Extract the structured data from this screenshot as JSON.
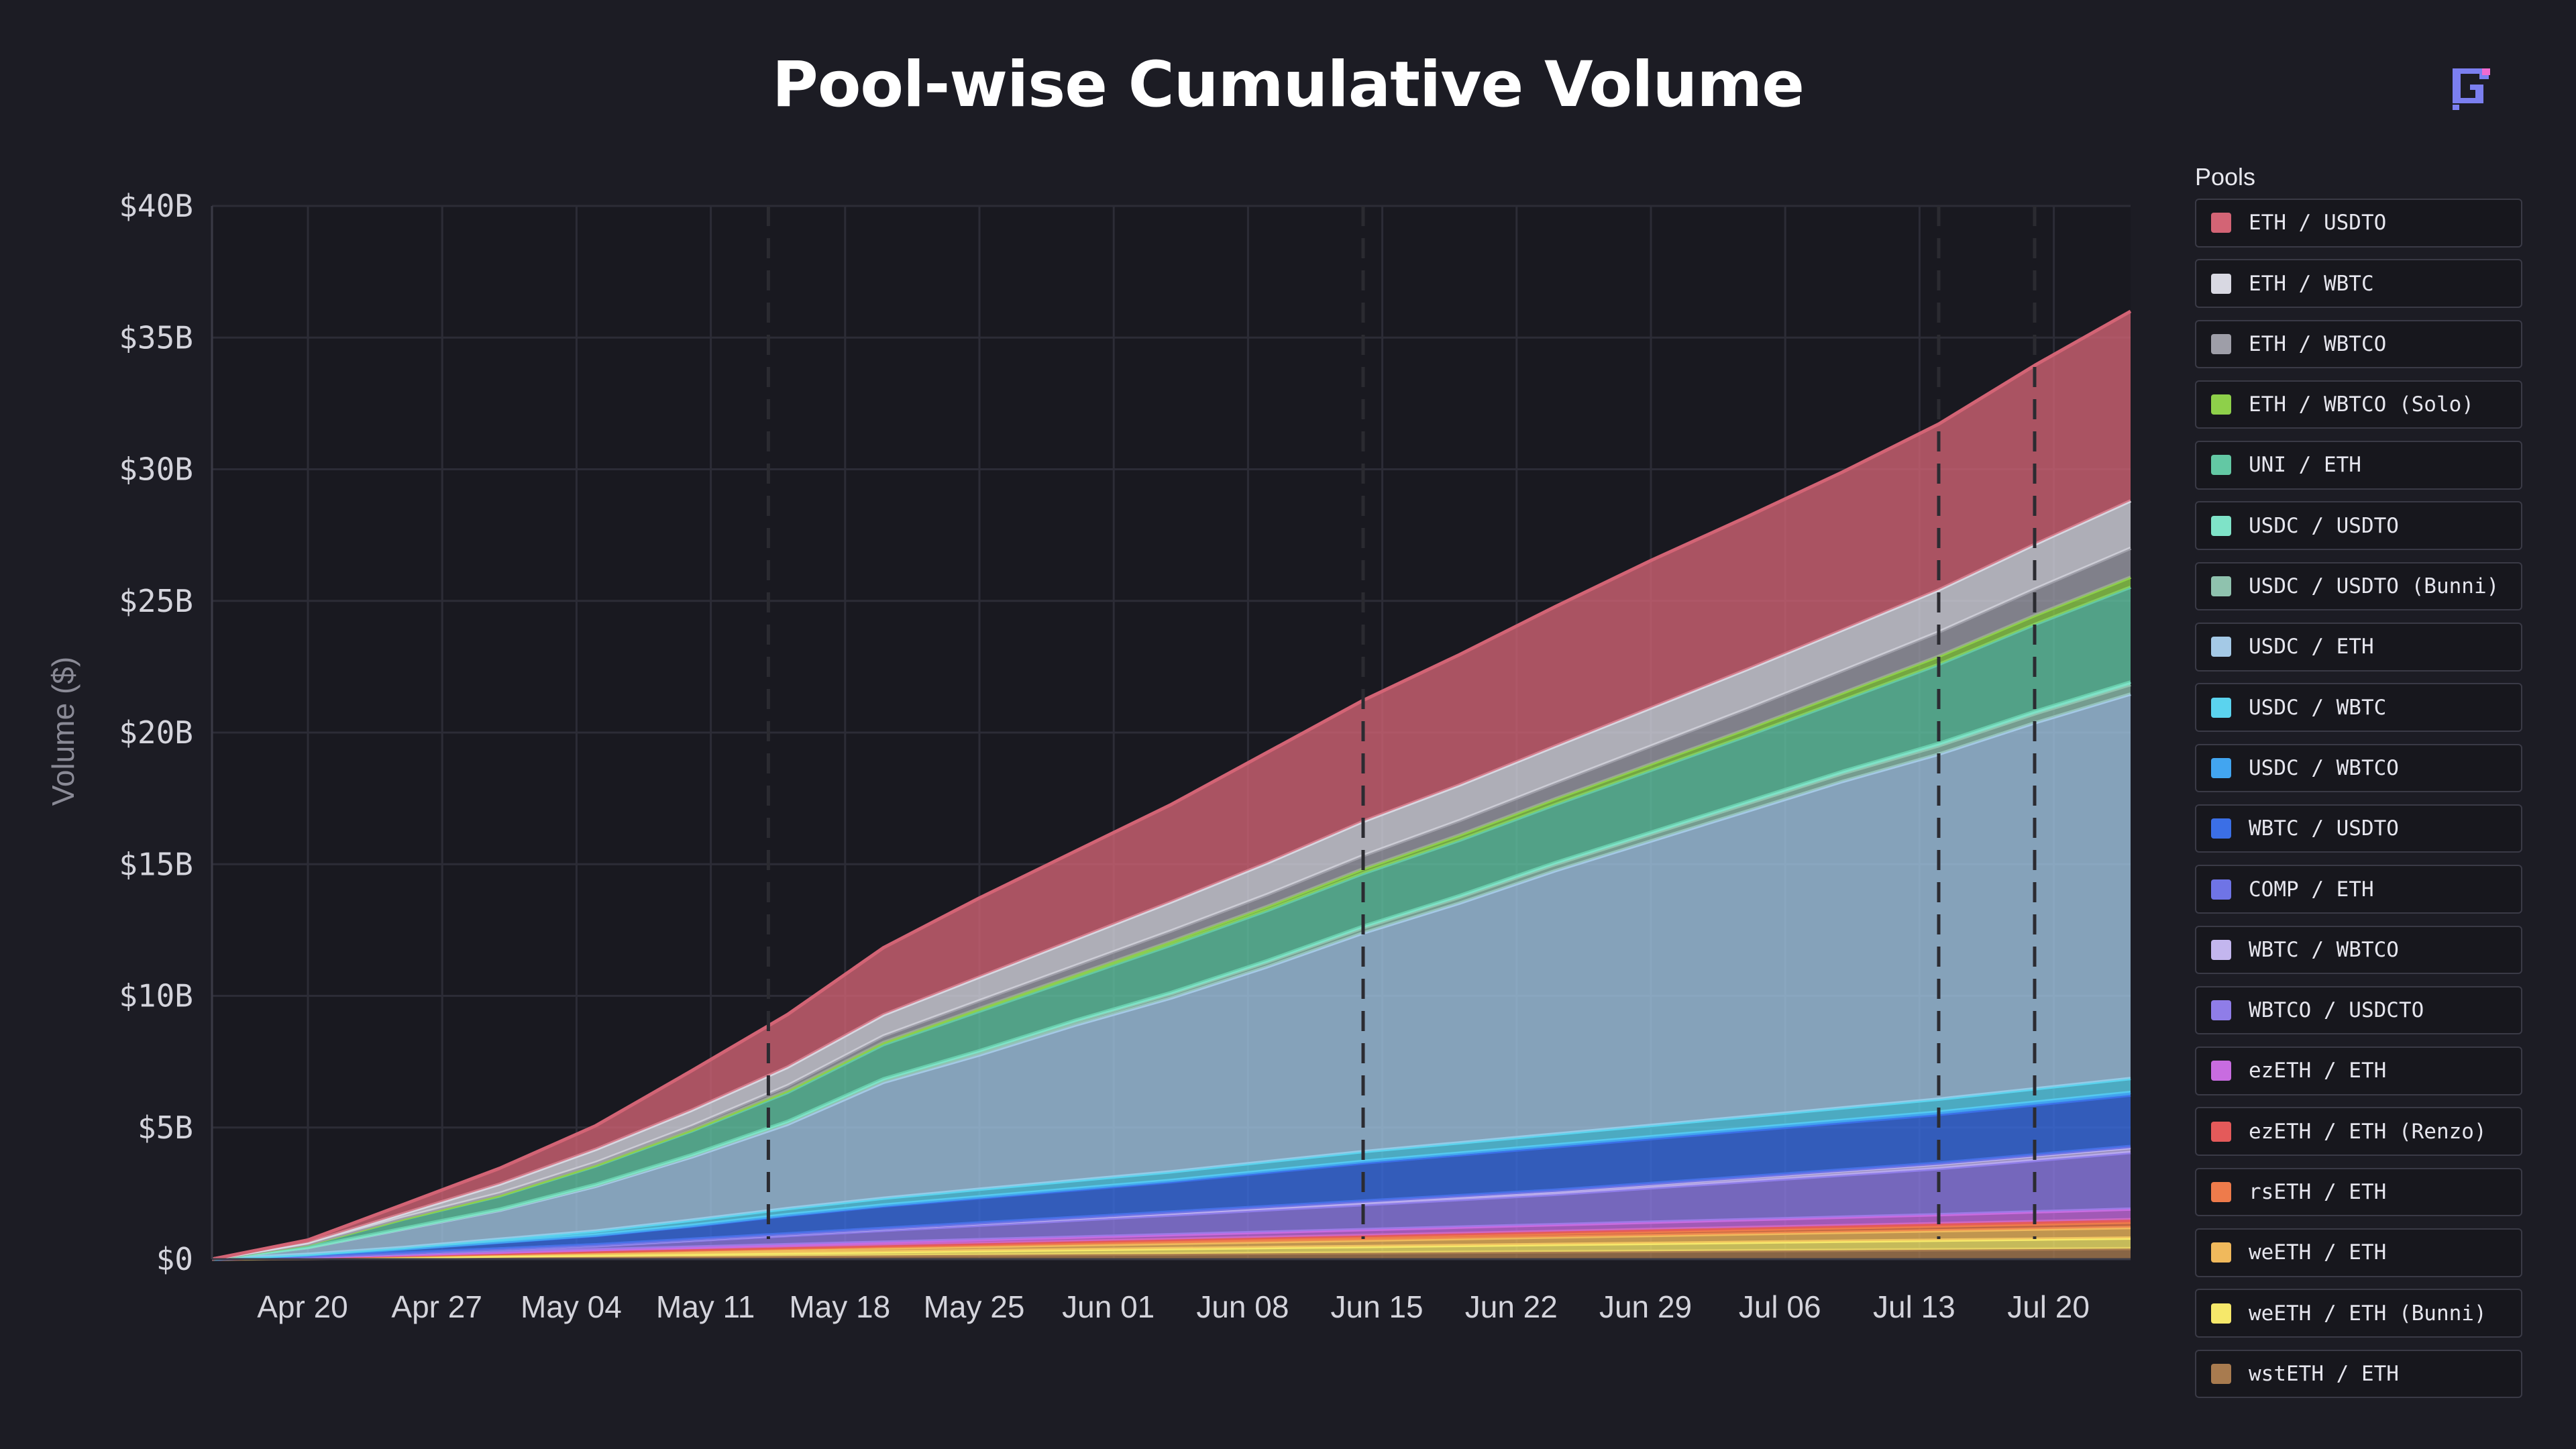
{
  "header": {
    "title": "Pool-wise Cumulative Volume"
  },
  "legend": {
    "title": "Pools"
  },
  "colors": {
    "background": "#1c1c24",
    "plot_background": "#191920",
    "grid": "#2c2c36",
    "logo": "#7b7ff0"
  },
  "chart_data": {
    "type": "area",
    "stacked": true,
    "title": "Pool-wise Cumulative Volume",
    "xlabel": "",
    "ylabel": "Volume ($)",
    "y_ticks": [
      "$0",
      "$5B",
      "$10B",
      "$15B",
      "$20B",
      "$25B",
      "$30B",
      "$35B",
      "$40B"
    ],
    "ylim": [
      0,
      40
    ],
    "y_unit": "billions USD",
    "x_ticks": [
      "Apr 20",
      "Apr 27",
      "May 04",
      "May 11",
      "May 18",
      "May 25",
      "Jun 01",
      "Jun 08",
      "Jun 15",
      "Jun 22",
      "Jun 29",
      "Jul 06",
      "Jul 13",
      "Jul 20"
    ],
    "x": [
      "2024-04-15",
      "2024-04-20",
      "2024-04-25",
      "2024-04-30",
      "2024-05-05",
      "2024-05-10",
      "2024-05-15",
      "2024-05-20",
      "2024-05-25",
      "2024-05-30",
      "2024-06-04",
      "2024-06-09",
      "2024-06-14",
      "2024-06-19",
      "2024-06-24",
      "2024-06-29",
      "2024-07-04",
      "2024-07-09",
      "2024-07-14",
      "2024-07-19",
      "2024-07-24"
    ],
    "xlim": [
      "2024-04-15",
      "2024-07-24"
    ],
    "vlines": [
      "2024-05-14",
      "2024-06-14",
      "2024-07-14",
      "2024-07-19"
    ],
    "grid": true,
    "legend_position": "right",
    "series": [
      {
        "name": "wstETH / ETH",
        "color": "#a87b4f",
        "values": [
          0,
          0.02,
          0.04,
          0.06,
          0.08,
          0.1,
          0.12,
          0.14,
          0.16,
          0.18,
          0.2,
          0.22,
          0.24,
          0.26,
          0.28,
          0.3,
          0.32,
          0.34,
          0.36,
          0.38,
          0.4
        ]
      },
      {
        "name": "weETH / ETH (Bunni)",
        "color": "#f6e86a",
        "values": [
          0,
          0.02,
          0.04,
          0.06,
          0.08,
          0.1,
          0.12,
          0.14,
          0.16,
          0.18,
          0.2,
          0.22,
          0.24,
          0.26,
          0.28,
          0.3,
          0.32,
          0.34,
          0.36,
          0.38,
          0.4
        ]
      },
      {
        "name": "weETH / ETH",
        "color": "#f0b95c",
        "values": [
          0,
          0.02,
          0.04,
          0.06,
          0.08,
          0.1,
          0.12,
          0.14,
          0.16,
          0.18,
          0.2,
          0.22,
          0.24,
          0.26,
          0.28,
          0.3,
          0.32,
          0.34,
          0.36,
          0.38,
          0.4
        ]
      },
      {
        "name": "rsETH / ETH",
        "color": "#ee7b4b",
        "values": [
          0,
          0.01,
          0.02,
          0.03,
          0.04,
          0.05,
          0.06,
          0.07,
          0.08,
          0.09,
          0.1,
          0.11,
          0.12,
          0.13,
          0.14,
          0.15,
          0.16,
          0.17,
          0.18,
          0.19,
          0.2
        ]
      },
      {
        "name": "ezETH / ETH (Renzo)",
        "color": "#e45a5a",
        "values": [
          0,
          0.005,
          0.01,
          0.015,
          0.02,
          0.025,
          0.03,
          0.035,
          0.04,
          0.045,
          0.05,
          0.055,
          0.06,
          0.065,
          0.07,
          0.075,
          0.08,
          0.085,
          0.09,
          0.095,
          0.1
        ]
      },
      {
        "name": "ezETH / ETH",
        "color": "#c86ce0",
        "values": [
          0,
          0.01,
          0.02,
          0.04,
          0.06,
          0.08,
          0.1,
          0.12,
          0.14,
          0.16,
          0.18,
          0.2,
          0.22,
          0.24,
          0.26,
          0.28,
          0.3,
          0.32,
          0.34,
          0.37,
          0.4
        ]
      },
      {
        "name": "WBTCO / USDCTO",
        "color": "#8f7de8",
        "values": [
          0,
          0.02,
          0.05,
          0.1,
          0.15,
          0.25,
          0.35,
          0.45,
          0.55,
          0.65,
          0.75,
          0.85,
          0.95,
          1.05,
          1.15,
          1.3,
          1.45,
          1.6,
          1.75,
          1.95,
          2.15
        ]
      },
      {
        "name": "WBTC / WBTCO",
        "color": "#c3b6ee",
        "values": [
          0,
          0.005,
          0.01,
          0.02,
          0.03,
          0.04,
          0.05,
          0.06,
          0.07,
          0.08,
          0.09,
          0.1,
          0.11,
          0.12,
          0.13,
          0.14,
          0.15,
          0.16,
          0.17,
          0.18,
          0.19
        ]
      },
      {
        "name": "COMP / ETH",
        "color": "#6f74e6",
        "values": [
          0,
          0.002,
          0.004,
          0.006,
          0.008,
          0.01,
          0.012,
          0.014,
          0.016,
          0.018,
          0.02,
          0.022,
          0.024,
          0.026,
          0.028,
          0.03,
          0.032,
          0.034,
          0.036,
          0.038,
          0.04
        ]
      },
      {
        "name": "WBTC / USDTO",
        "color": "#3b6fe6",
        "values": [
          0,
          0.05,
          0.15,
          0.25,
          0.35,
          0.5,
          0.7,
          0.85,
          0.95,
          1.05,
          1.15,
          1.3,
          1.45,
          1.55,
          1.65,
          1.7,
          1.75,
          1.8,
          1.85,
          1.9,
          1.95
        ]
      },
      {
        "name": "USDC / WBTCO",
        "color": "#42a5f0",
        "values": [
          0,
          0.005,
          0.01,
          0.015,
          0.02,
          0.025,
          0.03,
          0.035,
          0.04,
          0.045,
          0.05,
          0.055,
          0.06,
          0.065,
          0.07,
          0.075,
          0.08,
          0.085,
          0.09,
          0.095,
          0.1
        ]
      },
      {
        "name": "USDC / WBTC",
        "color": "#5bd3ee",
        "values": [
          0,
          0.02,
          0.05,
          0.1,
          0.15,
          0.2,
          0.23,
          0.26,
          0.29,
          0.31,
          0.33,
          0.35,
          0.37,
          0.39,
          0.41,
          0.43,
          0.45,
          0.47,
          0.49,
          0.51,
          0.53
        ]
      },
      {
        "name": "USDC / ETH",
        "color": "#a4c9e6",
        "values": [
          0,
          0.25,
          0.7,
          1.1,
          1.7,
          2.4,
          3.2,
          4.4,
          5.1,
          5.9,
          6.6,
          7.4,
          8.3,
          9.1,
          10.0,
          10.8,
          11.6,
          12.4,
          13.1,
          13.9,
          14.6
        ]
      },
      {
        "name": "USDC / USDTO (Bunni)",
        "color": "#8fc2ae",
        "values": [
          0,
          0.01,
          0.02,
          0.03,
          0.05,
          0.06,
          0.08,
          0.1,
          0.12,
          0.14,
          0.16,
          0.18,
          0.2,
          0.22,
          0.24,
          0.26,
          0.28,
          0.3,
          0.32,
          0.34,
          0.36
        ]
      },
      {
        "name": "USDC / USDTO",
        "color": "#7fe3c8",
        "values": [
          0,
          0.005,
          0.01,
          0.015,
          0.02,
          0.025,
          0.03,
          0.035,
          0.04,
          0.045,
          0.05,
          0.055,
          0.06,
          0.065,
          0.07,
          0.075,
          0.08,
          0.085,
          0.09,
          0.095,
          0.1
        ]
      },
      {
        "name": "UNI / ETH",
        "color": "#63c8a4",
        "values": [
          0,
          0.1,
          0.35,
          0.5,
          0.7,
          0.9,
          1.1,
          1.3,
          1.5,
          1.6,
          1.8,
          1.9,
          2.0,
          2.1,
          2.2,
          2.35,
          2.5,
          2.7,
          3.0,
          3.3,
          3.6
        ]
      },
      {
        "name": "ETH / WBTCO (Solo)",
        "color": "#8ed04a",
        "values": [
          0,
          0.005,
          0.01,
          0.02,
          0.03,
          0.04,
          0.06,
          0.08,
          0.1,
          0.12,
          0.14,
          0.16,
          0.18,
          0.2,
          0.22,
          0.24,
          0.26,
          0.28,
          0.31,
          0.34,
          0.38
        ]
      },
      {
        "name": "ETH / WBTCO",
        "color": "#9e9ea8",
        "values": [
          0,
          0.02,
          0.05,
          0.08,
          0.1,
          0.15,
          0.2,
          0.25,
          0.3,
          0.35,
          0.4,
          0.45,
          0.5,
          0.55,
          0.6,
          0.68,
          0.76,
          0.84,
          0.92,
          1.0,
          1.1
        ]
      },
      {
        "name": "ETH / WBTC",
        "color": "#d8d8e2",
        "values": [
          0,
          0.05,
          0.15,
          0.35,
          0.5,
          0.6,
          0.7,
          0.8,
          0.9,
          1.0,
          1.1,
          1.2,
          1.3,
          1.35,
          1.4,
          1.45,
          1.5,
          1.55,
          1.6,
          1.7,
          1.8
        ]
      },
      {
        "name": "ETH / USDTO",
        "color": "#d36475",
        "values": [
          0,
          0.1,
          0.35,
          0.6,
          0.9,
          1.5,
          2.0,
          2.55,
          3.0,
          3.35,
          3.7,
          4.2,
          4.6,
          4.95,
          5.3,
          5.6,
          5.8,
          6.0,
          6.3,
          6.8,
          7.2
        ]
      }
    ]
  }
}
